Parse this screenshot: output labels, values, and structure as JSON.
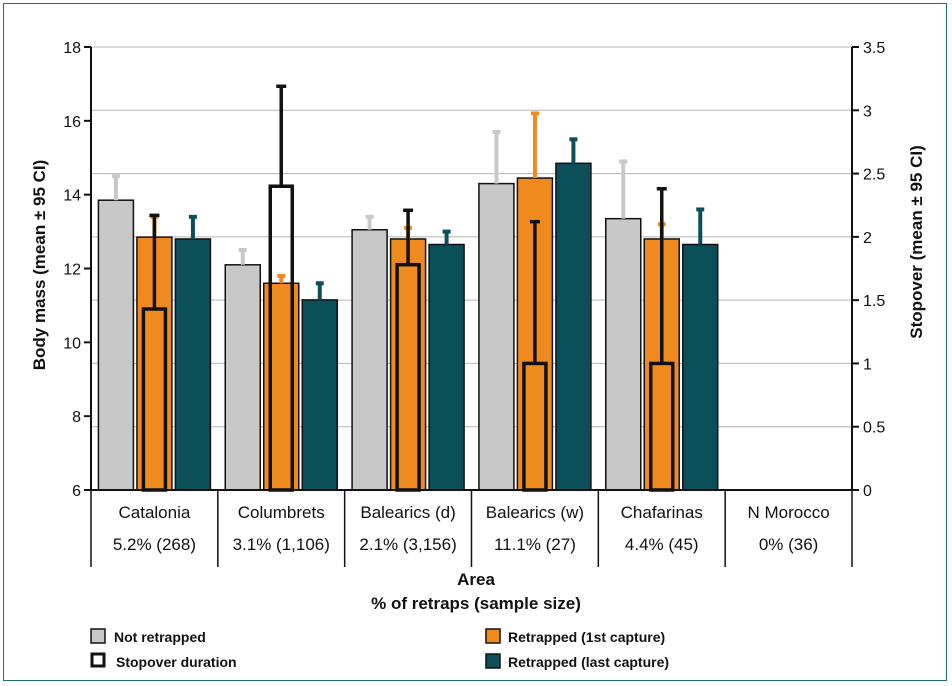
{
  "chart_data": {
    "type": "bar",
    "categories": [
      "Catalonia",
      "Columbrets",
      "Balearics (d)",
      "Balearics (w)",
      "Chafarinas",
      "N Morocco"
    ],
    "category_sublabels": [
      "5.2% (268)",
      "3.1% (1,106)",
      "2.1% (3,156)",
      "11.1% (27)",
      "4.4% (45)",
      "0% (36)"
    ],
    "xlabel": "Area",
    "xlabel2": "% of retraps (sample size)",
    "ylabel": "Body mass (mean ± 95 CI)",
    "ylabel_right": "Stopover (mean ± 95 CI)",
    "ylim": [
      6,
      18
    ],
    "ylim_right": [
      0,
      3.5
    ],
    "yticks": [
      "6",
      "8",
      "10",
      "12",
      "14",
      "16",
      "18"
    ],
    "yticks_right": [
      "0",
      "0.5",
      "1",
      "1.5",
      "2",
      "2.5",
      "3",
      "3.5"
    ],
    "series": [
      {
        "name": "Not retrapped",
        "color": "#c8c8c8",
        "values": [
          13.85,
          12.1,
          13.05,
          14.3,
          13.35,
          null
        ],
        "ci_upper": [
          14.5,
          12.5,
          13.4,
          15.7,
          14.9,
          null
        ]
      },
      {
        "name": "Retrapped (1st capture)",
        "color": "#ef8a1e",
        "values": [
          12.85,
          11.6,
          12.8,
          14.45,
          12.8,
          null
        ],
        "ci_upper": [
          13.4,
          11.8,
          13.1,
          16.2,
          13.2,
          null
        ]
      },
      {
        "name": "Retrapped  (last capture)",
        "color": "#0a4f5a",
        "values": [
          12.8,
          11.15,
          12.65,
          14.85,
          12.65,
          null
        ],
        "ci_upper": [
          13.4,
          11.6,
          13.0,
          15.5,
          13.6,
          null
        ]
      }
    ],
    "stopover": {
      "name": "Stopover duration",
      "values": [
        1.43,
        2.4,
        1.78,
        1.0,
        1.0,
        null
      ],
      "ci_upper": [
        2.17,
        3.19,
        2.21,
        2.12,
        2.38,
        null
      ]
    },
    "gridlines": true
  },
  "legend": {
    "not_retrapped": "Not retrapped",
    "stopover": "Stopover duration",
    "retrapped_first": "Retrapped (1st capture)",
    "retrapped_last": "Retrapped  (last capture)"
  }
}
